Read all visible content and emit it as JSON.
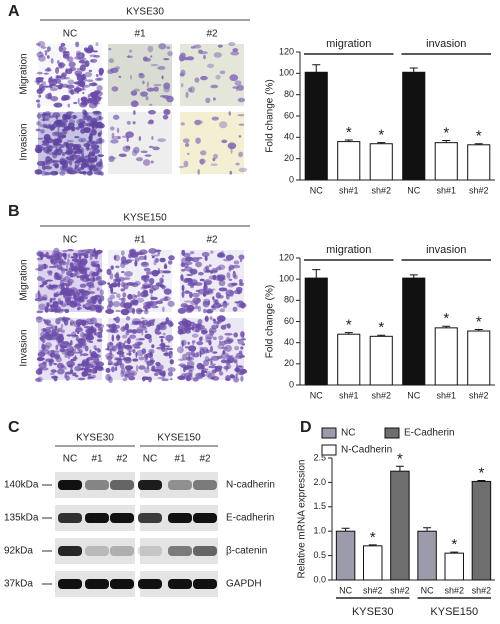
{
  "panel_labels": [
    "A",
    "B",
    "C",
    "D"
  ],
  "panel_a": {
    "cell_line": "KYSE30",
    "columns": [
      "NC",
      "#1",
      "#2"
    ],
    "rows": [
      "Migration",
      "Invasion"
    ]
  },
  "panel_b": {
    "cell_line": "KYSE150",
    "columns": [
      "NC",
      "#1",
      "#2"
    ],
    "rows": [
      "Migration",
      "Invasion"
    ]
  },
  "panel_c": {
    "groups": [
      {
        "name": "KYSE30",
        "lanes": [
          "NC",
          "#1",
          "#2"
        ]
      },
      {
        "name": "KYSE150",
        "lanes": [
          "NC",
          "#1",
          "#2"
        ]
      }
    ],
    "proteins": [
      {
        "size": "140kDa",
        "name": "N-cadherin"
      },
      {
        "size": "135kDa",
        "name": "E-cadherin"
      },
      {
        "size": "92kDa",
        "name": "β-catenin"
      },
      {
        "size": "37kDa",
        "name": "GAPDH"
      }
    ]
  },
  "chart_data": [
    {
      "type": "bar",
      "ylabel": "Fold change (%)",
      "categories": [
        "NC",
        "sh#1",
        "sh#2",
        "NC",
        "sh#1",
        "sh#2"
      ],
      "groups": [
        "migration",
        "invasion"
      ],
      "values": [
        101,
        36,
        34,
        101,
        35,
        33
      ],
      "errors": [
        7,
        1.5,
        1,
        4,
        2,
        1
      ],
      "colors": [
        "#111111",
        "#ffffff",
        "#ffffff",
        "#111111",
        "#ffffff",
        "#ffffff"
      ],
      "markers": [
        null,
        "*",
        "*",
        null,
        "*",
        "*"
      ],
      "ylim": [
        0,
        120
      ],
      "yticks": [
        0,
        20,
        40,
        60,
        80,
        100,
        120
      ]
    },
    {
      "type": "bar",
      "ylabel": "Fold change (%)",
      "categories": [
        "NC",
        "sh#1",
        "sh#2",
        "NC",
        "sh#1",
        "sh#2"
      ],
      "groups": [
        "migration",
        "invasion"
      ],
      "values": [
        101,
        48,
        46,
        101,
        54,
        51
      ],
      "errors": [
        8,
        1.5,
        1,
        3,
        1.5,
        1.5
      ],
      "colors": [
        "#111111",
        "#ffffff",
        "#ffffff",
        "#111111",
        "#ffffff",
        "#ffffff"
      ],
      "markers": [
        null,
        "*",
        "*",
        null,
        "*",
        "*"
      ],
      "ylim": [
        0,
        120
      ],
      "yticks": [
        0,
        20,
        40,
        60,
        80,
        100,
        120
      ]
    },
    {
      "type": "bar",
      "ylabel": "Relative mRNA expression",
      "categories": [
        "NC",
        "sh#2",
        "sh#2",
        "NC",
        "sh#2",
        "sh#2"
      ],
      "groups": [
        "KYSE30",
        "KYSE150"
      ],
      "series": [
        {
          "name": "NC",
          "color": "#9b9bab",
          "values": [
            1.0,
            null,
            null,
            1.0,
            null,
            null
          ],
          "errors": [
            0.06,
            null,
            null,
            0.07,
            null,
            null
          ]
        },
        {
          "name": "E-Cadherin",
          "color": "#6e6e6e",
          "values": [
            null,
            null,
            2.23,
            null,
            null,
            2.02
          ],
          "errors": [
            null,
            null,
            0.1,
            null,
            null,
            0.02
          ]
        },
        {
          "name": "N-Cadherin",
          "color": "#ffffff",
          "values": [
            null,
            0.7,
            null,
            null,
            0.55,
            null
          ],
          "errors": [
            null,
            0.02,
            null,
            null,
            0.02,
            null
          ]
        }
      ],
      "markers": [
        null,
        "*",
        "*",
        null,
        "*",
        "*"
      ],
      "ylim": [
        0,
        2.5
      ],
      "yticks": [
        {
          "value": 0,
          "label": "0.0"
        },
        0.5,
        {
          "value": 1,
          "label": "1.0"
        },
        1.5,
        {
          "value": 2,
          "label": "2.0"
        },
        2.5
      ]
    }
  ]
}
